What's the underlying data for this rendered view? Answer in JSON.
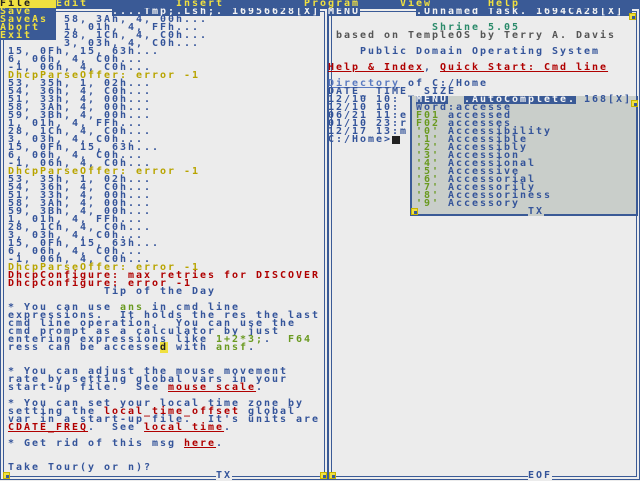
{
  "menubar": {
    "items": [
      "File",
      "Edit",
      "Insert",
      "Program",
      "View",
      "Help"
    ],
    "file_menu": [
      "Save",
      "SaveAs",
      "Abort",
      "Exit"
    ]
  },
  "left_window": {
    "title": "....Tmp;.Lsh;.",
    "id": "16956628",
    "close": "[X]",
    "footer": "TX",
    "log": [
      {
        "text": "58, 3Ah, 4, 00h...",
        "kind": "normal"
      },
      {
        "text": "1, 01h, 4, FFh...",
        "kind": "normal"
      },
      {
        "text": "28, 1Ch, 4, C0h...",
        "kind": "normal"
      },
      {
        "text": "3, 03h, 4, C0h...",
        "kind": "normal"
      },
      {
        "text": "15, 0Fh, 15, 63h...",
        "kind": "normal"
      },
      {
        "text": "6, 06h, 4, C0h...",
        "kind": "normal"
      },
      {
        "text": "-1, 06h, 4, C0h...",
        "kind": "normal"
      },
      {
        "text": "DhcpParseOffer: error -1",
        "kind": "warn"
      },
      {
        "text": "53, 35h, 1, 02h...",
        "kind": "normal"
      },
      {
        "text": "54, 36h, 4, C0h...",
        "kind": "normal"
      },
      {
        "text": "51, 33h, 4, 00h...",
        "kind": "normal"
      },
      {
        "text": "58, 3Ah, 4, 00h...",
        "kind": "normal"
      },
      {
        "text": "59, 3Bh, 4, 00h...",
        "kind": "normal"
      },
      {
        "text": "1, 01h, 4, FFh...",
        "kind": "normal"
      },
      {
        "text": "28, 1Ch, 4, C0h...",
        "kind": "normal"
      },
      {
        "text": "3, 03h, 4, C0h...",
        "kind": "normal"
      },
      {
        "text": "15, 0Fh, 15, 63h...",
        "kind": "normal"
      },
      {
        "text": "6, 06h, 4, C0h...",
        "kind": "normal"
      },
      {
        "text": "-1, 06h, 4, C0h...",
        "kind": "normal"
      },
      {
        "text": "DhcpParseOffer: error -1",
        "kind": "warn"
      },
      {
        "text": "53, 35h, 1, 02h...",
        "kind": "normal"
      },
      {
        "text": "54, 36h, 4, C0h...",
        "kind": "normal"
      },
      {
        "text": "51, 33h, 4, 00h...",
        "kind": "normal"
      },
      {
        "text": "58, 3Ah, 4, 00h...",
        "kind": "normal"
      },
      {
        "text": "59, 3Bh, 4, 00h...",
        "kind": "normal"
      },
      {
        "text": "1, 01h, 4, FFh...",
        "kind": "normal"
      },
      {
        "text": "28, 1Ch, 4, C0h...",
        "kind": "normal"
      },
      {
        "text": "3, 03h, 4, C0h...",
        "kind": "normal"
      },
      {
        "text": "15, 0Fh, 15, 63h...",
        "kind": "normal"
      },
      {
        "text": "6, 06h, 4, C0h...",
        "kind": "normal"
      },
      {
        "text": "-1, 06h, 4, C0h...",
        "kind": "normal"
      },
      {
        "text": "DhcpParseOffer: error -1",
        "kind": "warn"
      },
      {
        "text": "DhcpConfigure: max retries for DISCOVER",
        "kind": "error"
      },
      {
        "text": "DhcpConfigure: error -1",
        "kind": "error"
      }
    ],
    "tip_title": "Tip of the Day",
    "tip_lines": [
      {
        "row": 38,
        "segs": [
          {
            "t": "* You can use "
          },
          {
            "t": "ans",
            "c": "green"
          },
          {
            "t": " in cmd line"
          }
        ]
      },
      {
        "row": 39,
        "segs": [
          {
            "t": "expressions.  It holds the res the last"
          }
        ]
      },
      {
        "row": 40,
        "segs": [
          {
            "t": "cmd line operation.  You can use the"
          }
        ]
      },
      {
        "row": 41,
        "segs": [
          {
            "t": "cmd prompt as a calculator by just"
          }
        ]
      },
      {
        "row": 42,
        "segs": [
          {
            "t": "entering expressions like "
          },
          {
            "t": "1+2*3;",
            "c": "green"
          },
          {
            "t": ".  "
          },
          {
            "t": "F64",
            "c": "green"
          }
        ]
      },
      {
        "row": 43,
        "segs": [
          {
            "t": "ress can be accesse"
          },
          {
            "t": "d",
            "c": "hl"
          },
          {
            "t": " with "
          },
          {
            "t": "ansf",
            "c": "green"
          },
          {
            "t": "."
          }
        ]
      },
      {
        "row": 46,
        "segs": [
          {
            "t": "* You can adjust the mouse movement"
          }
        ]
      },
      {
        "row": 47,
        "segs": [
          {
            "t": "rate by setting global vars in your"
          }
        ]
      },
      {
        "row": 48,
        "segs": [
          {
            "t": "start-up file.  See "
          },
          {
            "t": "mouse scale",
            "c": "link"
          },
          {
            "t": "."
          }
        ]
      },
      {
        "row": 50,
        "segs": [
          {
            "t": "* You can set your local time zone by"
          }
        ]
      },
      {
        "row": 51,
        "segs": [
          {
            "t": "setting the "
          },
          {
            "t": "local_time_offset",
            "c": "red"
          },
          {
            "t": " global"
          }
        ]
      },
      {
        "row": 52,
        "segs": [
          {
            "t": "var in a start-up file.  It's units are"
          }
        ]
      },
      {
        "row": 53,
        "segs": [
          {
            "t": "CDATE_FREQ",
            "c": "link"
          },
          {
            "t": ".  See "
          },
          {
            "t": "local time",
            "c": "link"
          },
          {
            "t": "."
          }
        ]
      },
      {
        "row": 55,
        "segs": [
          {
            "t": "* Get rid of this msg "
          },
          {
            "t": "here",
            "c": "link"
          },
          {
            "t": "."
          }
        ]
      }
    ],
    "prompt": "Take Tour(y or n)?"
  },
  "right_window": {
    "menu_label": "MENU",
    "title": ".Unnamed Task.",
    "id": "1694CA28",
    "close": "[X]",
    "footer": "EOF",
    "product": "Shrine 5.05",
    "based_on": "based on TempleOS by Terry A. Davis",
    "tagline": "Public Domain Operating System",
    "help_link": "Help & Index",
    "sep": ", ",
    "quick_link": "Quick Start: Cmd line",
    "dir_link": "Directory",
    "dir_rest": " of C:/Home",
    "dir_header": "DATE_ TIME_ SIZE",
    "dir_rows": [
      "12/10 10:",
      "12/10 10:",
      "06/21 11:e",
      "01/10 23:r",
      "12/17 13:m"
    ],
    "cmd_prompt": "C:/Home>"
  },
  "autocomplete": {
    "menu_label": "MENU",
    "title": ".AutoComplete.",
    "id": "168",
    "close": "[X]",
    "footer": "TX",
    "word_label": "Word:",
    "word": "accesse",
    "fkeys": [
      {
        "key": "F01",
        "word": "accessed"
      },
      {
        "key": "F02",
        "word": "accesses"
      }
    ],
    "numbered": [
      {
        "key": "'0'",
        "word": "Accessibility"
      },
      {
        "key": "'1'",
        "word": "Accessible"
      },
      {
        "key": "'2'",
        "word": "Accessibly"
      },
      {
        "key": "'3'",
        "word": "Accession"
      },
      {
        "key": "'4'",
        "word": "Accessional"
      },
      {
        "key": "'5'",
        "word": "Accessive"
      },
      {
        "key": "'6'",
        "word": "Accessorial"
      },
      {
        "key": "'7'",
        "word": "Accessorily"
      },
      {
        "key": "'8'",
        "word": "Accessoriness"
      },
      {
        "key": "'9'",
        "word": "Accessory"
      }
    ]
  },
  "colors": {
    "blue": "#3a5a96",
    "yellow": "#f0e040",
    "red": "#b00000",
    "green": "#6a9a20",
    "background": "#ececec"
  }
}
